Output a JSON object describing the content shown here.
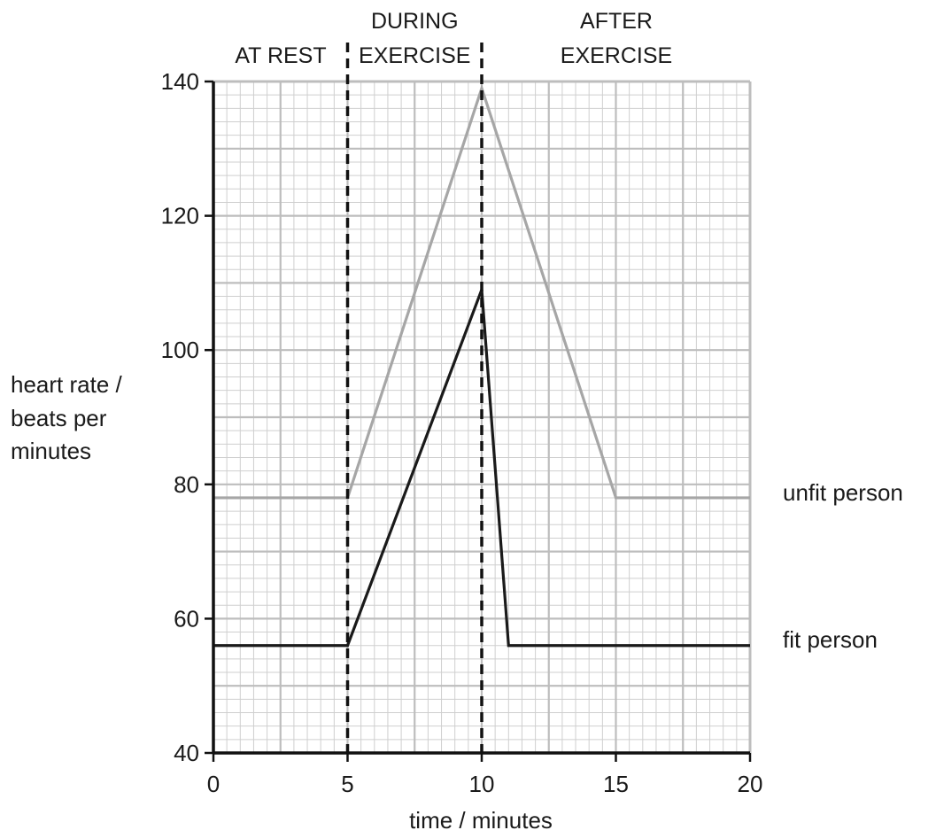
{
  "chart_data": {
    "type": "line",
    "xlabel": "time / minutes",
    "ylabel_lines": [
      "heart rate /",
      "beats per",
      "minutes"
    ],
    "xlim": [
      0,
      20
    ],
    "ylim": [
      40,
      140
    ],
    "x_ticks": [
      0,
      5,
      10,
      15,
      20
    ],
    "y_ticks": [
      40,
      60,
      80,
      100,
      120,
      140
    ],
    "grid": true,
    "phases": [
      {
        "lines": [
          "AT REST"
        ]
      },
      {
        "lines": [
          "DURING",
          "EXERCISE"
        ]
      },
      {
        "lines": [
          "AFTER",
          "EXERCISE"
        ]
      }
    ],
    "phase_boundaries": [
      5,
      10
    ],
    "series": [
      {
        "name": "unfit person",
        "color": "#a6a6a6",
        "points": [
          [
            0,
            78
          ],
          [
            5,
            78
          ],
          [
            10,
            139
          ],
          [
            15,
            78
          ],
          [
            20,
            78
          ]
        ]
      },
      {
        "name": "fit person",
        "color": "#1a1a1a",
        "points": [
          [
            0,
            56
          ],
          [
            5,
            56
          ],
          [
            10,
            109
          ],
          [
            11,
            56
          ],
          [
            20,
            56
          ]
        ]
      }
    ]
  }
}
